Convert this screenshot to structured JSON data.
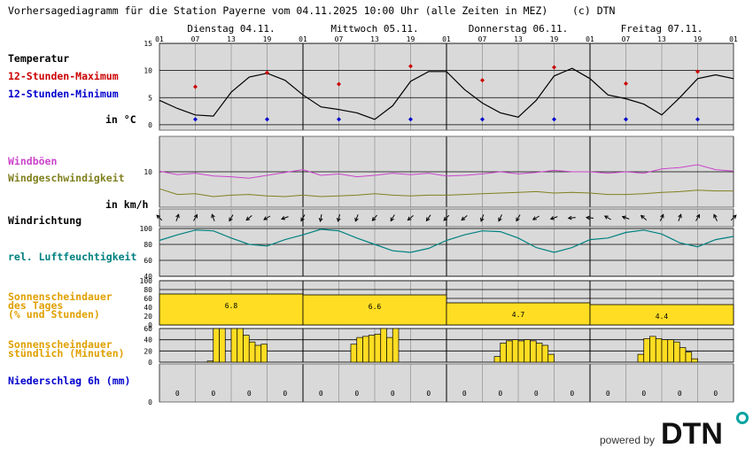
{
  "header": {
    "title": "Vorhersagediagramm für die Station Payerne vom 04.11.2025 10:00 Uhr (alle Zeiten in MEZ)",
    "copyright": "(c) DTN"
  },
  "days": [
    "Dienstag 04.11.",
    "Mittwoch 05.11.",
    "Donnerstag 06.11.",
    "Freitag 07.11."
  ],
  "hour_ticks": [
    "01",
    "07",
    "13",
    "19"
  ],
  "hour_tick_end": "01",
  "colors": {
    "panel_bg": "#d9d9d9",
    "temperature": "#000000",
    "max": "#cc0000",
    "min": "#0000cc",
    "gust": "#cc44cc",
    "wind": "#808020",
    "humidity": "#008080",
    "sun": "#ffdd22",
    "sun_label": "#e0a000",
    "precip_label": "#0000cc"
  },
  "labels": {
    "temperature": "Temperatur",
    "max": "12-Stunden-Maximum",
    "min": "12-Stunden-Minimum",
    "temp_unit": "in °C",
    "gust": "Windböen",
    "wind": "Windgeschwindigkeit",
    "wind_unit": "in km/h",
    "direction": "Windrichtung",
    "humidity": "rel. Luftfeuchtigkeit",
    "sun_daily_1": "Sonnenscheindauer",
    "sun_daily_2": "des Tages",
    "sun_daily_3": "(% und Stunden)",
    "sun_hourly_1": "Sonnenscheindauer",
    "sun_hourly_2": "stündlich (Minuten)",
    "precip": "Niederschlag 6h (mm)"
  },
  "footer": {
    "powered": "powered by",
    "brand": "DTN"
  },
  "chart_data": {
    "type": "meteogram",
    "x_unit": "hours from 04.11. 01:00 MEZ",
    "x_range": [
      0,
      96
    ],
    "temperature": {
      "ylim": [
        -1,
        15
      ],
      "ticks": [
        0,
        5,
        10,
        15
      ],
      "x": [
        0,
        3,
        6,
        9,
        12,
        15,
        18,
        21,
        24,
        27,
        30,
        33,
        36,
        39,
        42,
        45,
        48,
        51,
        54,
        57,
        60,
        63,
        66,
        69,
        72,
        75,
        78,
        81,
        84,
        87,
        90,
        93,
        96
      ],
      "y": [
        4.5,
        3.0,
        1.8,
        1.6,
        6.0,
        8.8,
        9.5,
        8.2,
        5.5,
        3.3,
        2.8,
        2.2,
        1.0,
        3.5,
        8.0,
        9.8,
        9.8,
        6.5,
        4.0,
        2.2,
        1.4,
        4.5,
        9.0,
        10.4,
        8.5,
        5.5,
        4.8,
        3.8,
        1.8,
        5.0,
        8.5,
        9.2,
        8.5
      ]
    },
    "max": {
      "x": [
        6,
        18,
        30,
        42,
        54,
        66,
        78,
        90
      ],
      "y": [
        7,
        9.6,
        7.5,
        10.8,
        8.2,
        10.6,
        7.6,
        9.8
      ]
    },
    "min": {
      "x": [
        6,
        18,
        30,
        42,
        54,
        66,
        78,
        90
      ],
      "y": [
        1.0,
        1.0,
        1.0,
        1.0,
        1.0,
        1.0,
        1.0,
        1.0
      ]
    },
    "wind": {
      "ylim": [
        0,
        20
      ],
      "ticks": [
        10
      ],
      "x": [
        0,
        3,
        6,
        9,
        12,
        15,
        18,
        21,
        24,
        27,
        30,
        33,
        36,
        39,
        42,
        45,
        48,
        51,
        54,
        57,
        60,
        63,
        66,
        69,
        72,
        75,
        78,
        81,
        84,
        87,
        90,
        93,
        96
      ],
      "gust": [
        10.2,
        9.2,
        9.6,
        8.8,
        8.6,
        8.2,
        9.0,
        9.8,
        10.6,
        9.0,
        9.4,
        8.6,
        9.0,
        9.6,
        9.2,
        9.6,
        8.8,
        9.0,
        9.4,
        10.0,
        9.4,
        9.8,
        10.4,
        10.0,
        10.0,
        9.6,
        10.0,
        9.6,
        10.8,
        11.2,
        12.0,
        10.6,
        10.2
      ],
      "speed": [
        5.2,
        3.6,
        3.8,
        3.0,
        3.4,
        3.6,
        3.2,
        3.0,
        3.4,
        3.0,
        3.2,
        3.4,
        3.8,
        3.4,
        3.2,
        3.4,
        3.4,
        3.6,
        3.8,
        4.0,
        4.2,
        4.4,
        4.0,
        4.2,
        4.0,
        3.6,
        3.6,
        3.8,
        4.2,
        4.4,
        4.8,
        4.6,
        4.6
      ]
    },
    "wind_direction": {
      "x": [
        0,
        3,
        6,
        9,
        12,
        15,
        18,
        21,
        24,
        27,
        30,
        33,
        36,
        39,
        42,
        45,
        48,
        51,
        54,
        57,
        60,
        63,
        66,
        69,
        72,
        75,
        78,
        81,
        84,
        87,
        90,
        93,
        96
      ],
      "deg_toward": [
        315,
        20,
        30,
        340,
        210,
        230,
        240,
        250,
        210,
        190,
        195,
        200,
        220,
        210,
        230,
        215,
        225,
        230,
        200,
        205,
        210,
        240,
        250,
        265,
        275,
        300,
        290,
        310,
        25,
        20,
        30,
        335,
        45
      ]
    },
    "humidity": {
      "ylim": [
        40,
        100
      ],
      "ticks": [
        40,
        60,
        80,
        100
      ],
      "x": [
        0,
        3,
        6,
        9,
        12,
        15,
        18,
        21,
        24,
        27,
        30,
        33,
        36,
        39,
        42,
        45,
        48,
        51,
        54,
        57,
        60,
        63,
        66,
        69,
        72,
        75,
        78,
        81,
        84,
        87,
        90,
        93,
        96
      ],
      "y": [
        85,
        92,
        98,
        97,
        88,
        80,
        78,
        86,
        92,
        99,
        97,
        88,
        80,
        72,
        70,
        75,
        85,
        92,
        97,
        96,
        88,
        76,
        70,
        76,
        86,
        88,
        95,
        98,
        93,
        82,
        77,
        86,
        90
      ]
    },
    "sun_daily": {
      "ylim": [
        0,
        100
      ],
      "ticks": [
        0,
        20,
        40,
        60,
        80,
        100
      ],
      "percent": [
        70,
        68,
        50,
        46
      ],
      "hours": [
        "6.8",
        "6.6",
        "4.7",
        "4.4"
      ]
    },
    "sun_hourly": {
      "ylim": [
        0,
        60
      ],
      "ticks": [
        0,
        20,
        40,
        60
      ],
      "hour_start": [
        8,
        9,
        10,
        11,
        12,
        13,
        14,
        15,
        16,
        17,
        32,
        33,
        34,
        35,
        36,
        37,
        38,
        39,
        40,
        41,
        56,
        57,
        58,
        59,
        60,
        61,
        62,
        63,
        64,
        65,
        80,
        81,
        82,
        83,
        84,
        85,
        86,
        87,
        88,
        89
      ],
      "minutes": [
        2,
        60,
        60,
        0,
        60,
        60,
        48,
        36,
        30,
        32,
        32,
        44,
        46,
        48,
        50,
        60,
        44,
        60,
        0,
        0,
        10,
        34,
        38,
        40,
        38,
        40,
        38,
        34,
        30,
        14,
        14,
        42,
        46,
        42,
        40,
        40,
        36,
        26,
        18,
        6
      ]
    },
    "precipitation": {
      "ylim": [
        0,
        1
      ],
      "interval_mid_hour": [
        3,
        9,
        15,
        21,
        27,
        33,
        39,
        45,
        51,
        57,
        63,
        69,
        75,
        81,
        87,
        93
      ],
      "values_mm": [
        "0",
        "0",
        "0",
        "0",
        "0",
        "0",
        "0",
        "0",
        "0",
        "0",
        "0",
        "0",
        "0",
        "0",
        "0",
        "0"
      ],
      "tick": "0"
    }
  }
}
